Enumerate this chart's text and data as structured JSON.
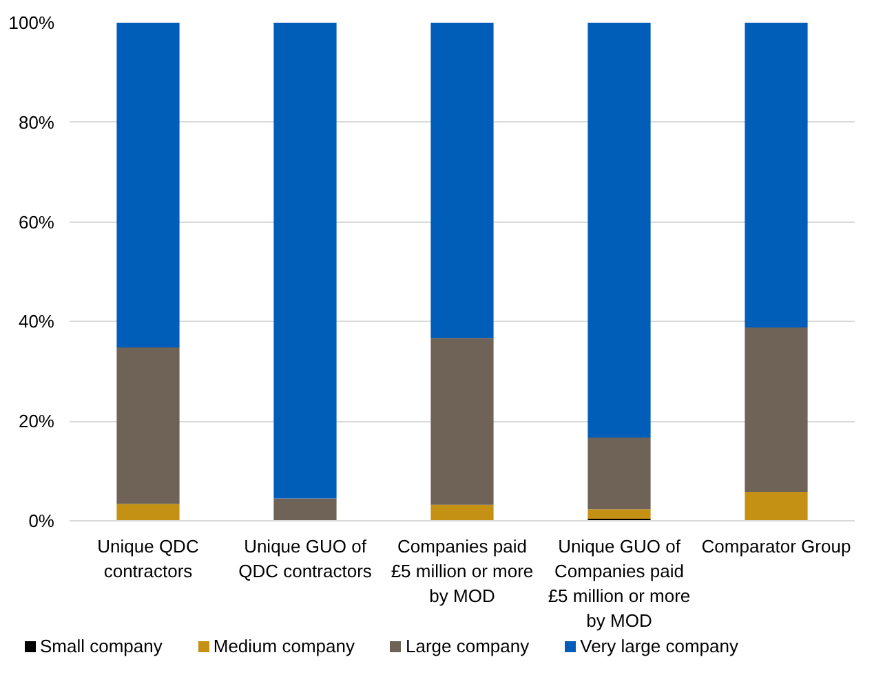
{
  "chart_data": {
    "type": "bar",
    "stacked": true,
    "categories": [
      "Unique QDC\ncontractors",
      "Unique GUO of\nQDC contractors",
      "Companies paid\n£5 million or more\nby MOD",
      "Unique GUO of\nCompanies paid\n£5 million or more\nby MOD",
      "Comparator Group"
    ],
    "series": [
      {
        "name": "Small company",
        "color": "#000000",
        "values": [
          0,
          0,
          0,
          0.4,
          0
        ]
      },
      {
        "name": "Medium company",
        "color": "#c59114",
        "values": [
          3.4,
          0,
          3.2,
          1.9,
          5.8
        ]
      },
      {
        "name": "Large company",
        "color": "#6f6257",
        "values": [
          31.4,
          4.5,
          33.5,
          14.4,
          33.0
        ]
      },
      {
        "name": "Very large company",
        "color": "#005eb8",
        "values": [
          65.2,
          95.5,
          63.3,
          83.3,
          61.2
        ]
      }
    ],
    "ylim": [
      0,
      100
    ],
    "yticks": [
      {
        "value": 0,
        "label": "0%"
      },
      {
        "value": 20,
        "label": "20%"
      },
      {
        "value": 40,
        "label": "40%"
      },
      {
        "value": 60,
        "label": "60%"
      },
      {
        "value": 80,
        "label": "80%"
      },
      {
        "value": 100,
        "label": "100%"
      }
    ],
    "grid": "y",
    "legend": "bottom"
  }
}
